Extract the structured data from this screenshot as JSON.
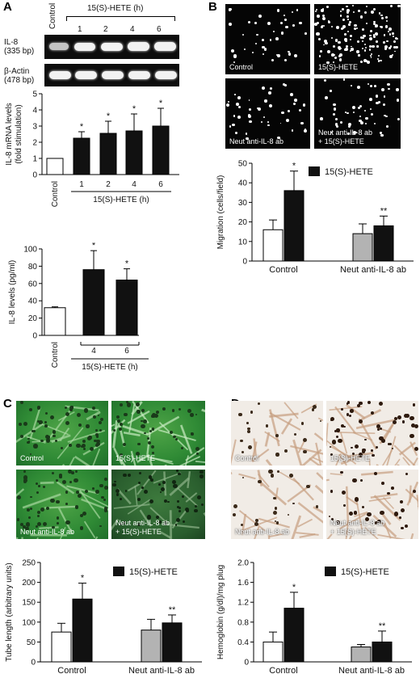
{
  "panels": {
    "a_letter": "A",
    "b_letter": "B",
    "c_letter": "C",
    "d_letter": "D"
  },
  "gel": {
    "control": "Control",
    "treatment_header": "15(S)-HETE (h)",
    "lanes": [
      "1",
      "2",
      "4",
      "6"
    ],
    "il8_label": "IL-8",
    "il8_size": "(335 bp)",
    "actin_label": "β-Actin",
    "actin_size": "(478 bp)"
  },
  "micro_b": [
    "Control",
    "15(S)-HETE",
    "Neut anti-IL-8 ab",
    "Neut anti-IL-8 ab",
    "+ 15(S)-HETE"
  ],
  "micro_c": [
    "Control",
    "15(S)-HETE",
    "Neut anti-IL-8 ab",
    "Neut anti-IL-8 ab",
    "+ 15(S)-HETE"
  ],
  "micro_d": [
    "Control",
    "15(S)-HETE",
    "Neut anti-IL-8 ab",
    "Neut anti-IL-8 ab",
    "+ 15(S)-HETE"
  ],
  "chart_data": [
    {
      "id": "A-mRNA",
      "type": "bar",
      "ylabel": "IL-8 mRNA levels (fold stimulation)",
      "ylabel_line1": "IL-8 mRNA levels",
      "ylabel_line2": "(fold stimulation)",
      "xlabel": "15(S)-HETE (h)",
      "categories": [
        "Control",
        "1",
        "2",
        "4",
        "6"
      ],
      "values": [
        1.0,
        2.25,
        2.55,
        2.7,
        3.0
      ],
      "errors": [
        0,
        0.4,
        0.75,
        1.05,
        1.1
      ],
      "significance": [
        "",
        "*",
        "*",
        "*",
        "*"
      ],
      "ylim": [
        0,
        5
      ],
      "yticks": [
        "0",
        "1",
        "2",
        "3",
        "4",
        "5"
      ]
    },
    {
      "id": "A-protein",
      "type": "bar",
      "ylabel": "IL-8 levels (pg/ml)",
      "xlabel": "15(S)-HETE (h)",
      "categories": [
        "Control",
        "4",
        "6"
      ],
      "values": [
        32,
        76,
        64
      ],
      "errors": [
        1,
        22,
        13
      ],
      "significance": [
        "",
        "*",
        "*"
      ],
      "ylim": [
        0,
        100
      ],
      "yticks": [
        "0",
        "20",
        "40",
        "60",
        "80",
        "100"
      ]
    },
    {
      "id": "B-migration",
      "type": "bar",
      "ylabel": "Migration (cells/field)",
      "groups": [
        "Control",
        "Neut anti-IL-8 ab"
      ],
      "legend": "15(S)-HETE",
      "series": [
        {
          "name": "",
          "values": [
            16,
            14
          ],
          "errors": [
            5,
            5
          ]
        },
        {
          "name": "15(S)-HETE",
          "values": [
            36,
            18
          ],
          "errors": [
            10,
            5
          ]
        }
      ],
      "significance": [
        "",
        "*",
        "",
        "**"
      ],
      "ylim": [
        0,
        50
      ],
      "yticks": [
        "0",
        "10",
        "20",
        "30",
        "40",
        "50"
      ]
    },
    {
      "id": "C-tube",
      "type": "bar",
      "ylabel": "Tube length (arbitrary units)",
      "groups": [
        "Control",
        "Neut anti-IL-8 ab"
      ],
      "legend": "15(S)-HETE",
      "series": [
        {
          "name": "",
          "values": [
            75,
            80
          ],
          "errors": [
            22,
            27
          ]
        },
        {
          "name": "15(S)-HETE",
          "values": [
            158,
            98
          ],
          "errors": [
            40,
            20
          ]
        }
      ],
      "significance": [
        "",
        "*",
        "",
        "**"
      ],
      "ylim": [
        0,
        250
      ],
      "yticks": [
        "0",
        "50",
        "100",
        "150",
        "200",
        "250"
      ]
    },
    {
      "id": "D-hemoglobin",
      "type": "bar",
      "ylabel": "Hemoglobin (g/dl)/mg plug",
      "groups": [
        "Control",
        "Neut anti-IL-8 ab"
      ],
      "legend": "15(S)-HETE",
      "series": [
        {
          "name": "",
          "values": [
            0.4,
            0.3
          ],
          "errors": [
            0.2,
            0.05
          ]
        },
        {
          "name": "15(S)-HETE",
          "values": [
            1.08,
            0.4
          ],
          "errors": [
            0.32,
            0.22
          ]
        }
      ],
      "significance": [
        "",
        "*",
        "",
        "**"
      ],
      "ylim": [
        0,
        2.0
      ],
      "yticks": [
        "0",
        "0.4",
        "0.8",
        "1.2",
        "1.6",
        "2.0"
      ]
    }
  ],
  "colors": {
    "control_bar": "#ffffff",
    "treated_bar": "#111111",
    "antibody_bar": "#b3b3b3"
  }
}
